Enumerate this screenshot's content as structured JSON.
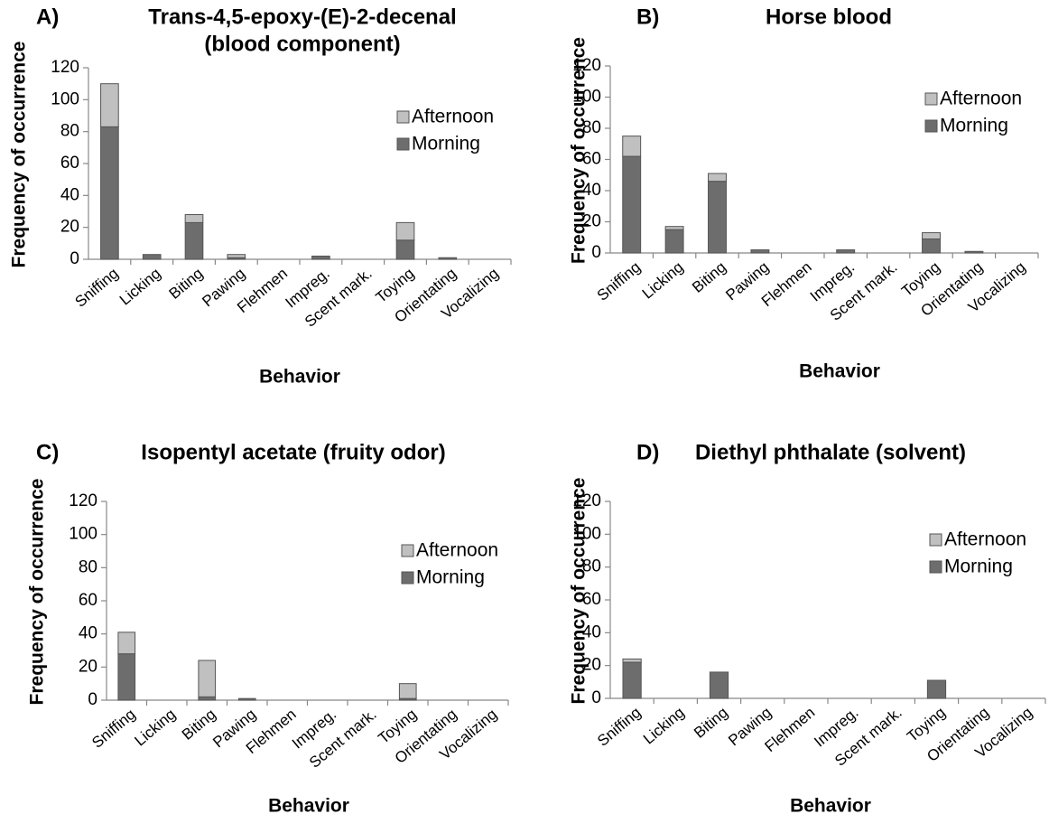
{
  "chart_data": [
    {
      "type": "bar",
      "stacked": true,
      "panel": "A)",
      "title": [
        "Trans-4,5-epoxy-(E)-2-decenal",
        "(blood component)"
      ],
      "x_label": "Behavior",
      "y_label": "Frequency of occurrence",
      "categories": [
        "Sniffing",
        "Licking",
        "Biting",
        "Pawing",
        "Flehmen",
        "Impreg.",
        "Scent mark.",
        "Toying",
        "Orientating",
        "Vocalizing"
      ],
      "series": [
        {
          "name": "Morning",
          "color": "#6d6d6d",
          "values": [
            83,
            3,
            23,
            1,
            0,
            2,
            0,
            12,
            1,
            0
          ]
        },
        {
          "name": "Afternoon",
          "color": "#c0c0c0",
          "values": [
            27,
            0,
            5,
            2,
            0,
            0,
            0,
            11,
            0,
            0
          ]
        }
      ],
      "ylim": [
        0,
        120
      ],
      "yticks": [
        0,
        20,
        40,
        60,
        80,
        100,
        120
      ]
    },
    {
      "type": "bar",
      "stacked": true,
      "panel": "B)",
      "title": [
        "Horse blood"
      ],
      "x_label": "Behavior",
      "y_label": "Frequency of occurrence",
      "categories": [
        "Sniffing",
        "Licking",
        "Biting",
        "Pawing",
        "Flehmen",
        "Impreg.",
        "Scent mark.",
        "Toying",
        "Orientating",
        "Vocalizing"
      ],
      "series": [
        {
          "name": "Morning",
          "color": "#6d6d6d",
          "values": [
            62,
            15,
            46,
            2,
            0,
            2,
            0,
            9,
            1,
            0
          ]
        },
        {
          "name": "Afternoon",
          "color": "#c0c0c0",
          "values": [
            13,
            2,
            5,
            0,
            0,
            0,
            0,
            4,
            0,
            0
          ]
        }
      ],
      "ylim": [
        0,
        120
      ],
      "yticks": [
        0,
        20,
        40,
        60,
        80,
        100,
        120
      ]
    },
    {
      "type": "bar",
      "stacked": true,
      "panel": "C)",
      "title": [
        "Isopentyl acetate (fruity odor)"
      ],
      "x_label": "Behavior",
      "y_label": "Frequency of occurrence",
      "categories": [
        "Sniffing",
        "Licking",
        "Biting",
        "Pawing",
        "Flehmen",
        "Impreg.",
        "Scent mark.",
        "Toying",
        "Orientating",
        "Vocalizing"
      ],
      "series": [
        {
          "name": "Morning",
          "color": "#6d6d6d",
          "values": [
            28,
            0,
            2,
            1,
            0,
            0,
            0,
            1,
            0,
            0
          ]
        },
        {
          "name": "Afternoon",
          "color": "#c0c0c0",
          "values": [
            13,
            0,
            22,
            0,
            0,
            0,
            0,
            9,
            0,
            0
          ]
        }
      ],
      "ylim": [
        0,
        120
      ],
      "yticks": [
        0,
        20,
        40,
        60,
        80,
        100,
        120
      ]
    },
    {
      "type": "bar",
      "stacked": true,
      "panel": "D)",
      "title": [
        "Diethyl phthalate (solvent)"
      ],
      "x_label": "Behavior",
      "y_label": "Frequency of occurrence",
      "categories": [
        "Sniffing",
        "Licking",
        "Biting",
        "Pawing",
        "Flehmen",
        "Impreg.",
        "Scent mark.",
        "Toying",
        "Orientating",
        "Vocalizing"
      ],
      "series": [
        {
          "name": "Morning",
          "color": "#6d6d6d",
          "values": [
            22,
            0,
            16,
            0,
            0,
            0,
            0,
            11,
            0,
            0
          ]
        },
        {
          "name": "Afternoon",
          "color": "#c0c0c0",
          "values": [
            2,
            0,
            0,
            0,
            0,
            0,
            0,
            0,
            0,
            0
          ]
        }
      ],
      "ylim": [
        0,
        120
      ],
      "yticks": [
        0,
        20,
        40,
        60,
        80,
        100,
        120
      ]
    }
  ]
}
